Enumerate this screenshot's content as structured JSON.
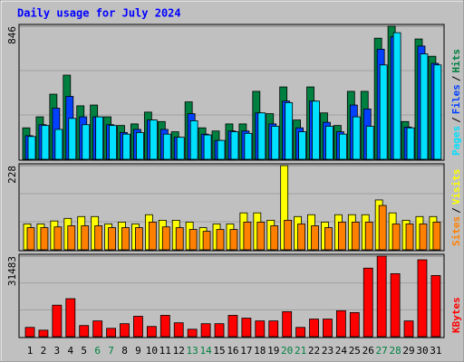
{
  "chart_data": [
    {
      "type": "bar",
      "title": "Daily usage for July 2024",
      "legend_separator": "/",
      "ylim": [
        0,
        846
      ],
      "yticks": [
        846
      ],
      "grid": [
        282,
        564
      ],
      "series": [
        {
          "name": "Hits",
          "color": "#008040",
          "values": [
            200,
            270,
            414,
            535,
            340,
            345,
            270,
            215,
            225,
            300,
            240,
            175,
            365,
            200,
            180,
            225,
            225,
            432,
            290,
            460,
            250,
            460,
            295,
            215,
            432,
            432,
            770,
            846,
            240,
            765,
            655
          ]
        },
        {
          "name": "Files",
          "color": "#0040ff",
          "values": [
            150,
            220,
            325,
            400,
            270,
            270,
            220,
            170,
            190,
            250,
            190,
            140,
            290,
            160,
            120,
            180,
            180,
            295,
            225,
            370,
            200,
            370,
            235,
            175,
            345,
            320,
            700,
            780,
            205,
            720,
            610
          ]
        },
        {
          "name": "Pages",
          "color": "#00e0ff",
          "values": [
            145,
            215,
            190,
            260,
            220,
            270,
            215,
            160,
            170,
            250,
            160,
            140,
            245,
            155,
            120,
            175,
            165,
            295,
            210,
            360,
            175,
            370,
            210,
            160,
            270,
            210,
            600,
            805,
            200,
            670,
            600
          ]
        }
      ]
    },
    {
      "type": "bar",
      "legend_separator": "/",
      "ylim": [
        0,
        228
      ],
      "yticks": [
        228
      ],
      "grid": [
        76,
        152
      ],
      "series": [
        {
          "name": "Visits",
          "color": "#ffff00",
          "values": [
            70,
            70,
            78,
            85,
            90,
            90,
            70,
            75,
            70,
            95,
            80,
            80,
            75,
            60,
            70,
            70,
            100,
            100,
            80,
            228,
            90,
            95,
            75,
            95,
            95,
            95,
            135,
            100,
            80,
            90,
            90
          ]
        },
        {
          "name": "Sites",
          "color": "#ff8000",
          "values": [
            60,
            60,
            62,
            65,
            65,
            65,
            60,
            60,
            60,
            75,
            62,
            60,
            55,
            50,
            55,
            55,
            75,
            75,
            65,
            80,
            70,
            65,
            60,
            75,
            75,
            75,
            120,
            70,
            70,
            70,
            75
          ]
        }
      ]
    },
    {
      "type": "bar",
      "ylim": [
        0,
        31483
      ],
      "yticks": [
        31483
      ],
      "grid": [
        10494,
        20989
      ],
      "categories": [
        "1",
        "2",
        "3",
        "4",
        "5",
        "6",
        "7",
        "8",
        "9",
        "10",
        "11",
        "12",
        "13",
        "14",
        "15",
        "16",
        "17",
        "18",
        "19",
        "20",
        "21",
        "22",
        "23",
        "24",
        "25",
        "26",
        "27",
        "28",
        "29",
        "30",
        "31"
      ],
      "category_colors": [
        "#000000",
        "#000000",
        "#000000",
        "#000000",
        "#000000",
        "#008040",
        "#008040",
        "#000000",
        "#000000",
        "#000000",
        "#000000",
        "#000000",
        "#008040",
        "#008040",
        "#000000",
        "#000000",
        "#000000",
        "#000000",
        "#000000",
        "#008040",
        "#008040",
        "#000000",
        "#000000",
        "#000000",
        "#000000",
        "#000000",
        "#008040",
        "#008040",
        "#000000",
        "#000000",
        "#000000"
      ],
      "series": [
        {
          "name": "KBytes",
          "color": "#ff0000",
          "values": [
            3620,
            2534,
            12308,
            14842,
            4344,
            6154,
            3258,
            5068,
            7964,
            3982,
            8326,
            5430,
            2896,
            5068,
            5068,
            8326,
            7240,
            6154,
            6154,
            9774,
            3620,
            6878,
            6878,
            10136,
            9412,
            26788,
            31483,
            24616,
            6154,
            30046,
            23892
          ]
        }
      ]
    }
  ]
}
